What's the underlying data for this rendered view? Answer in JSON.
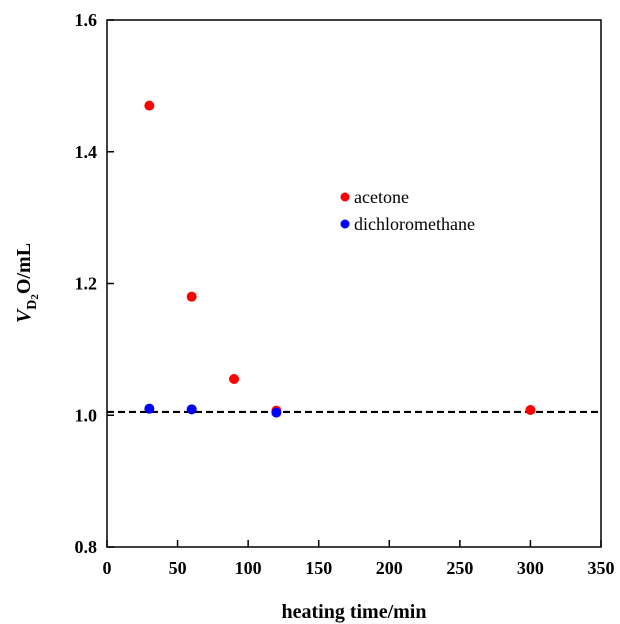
{
  "chart_data": {
    "type": "scatter",
    "xlabel": "heating time/min",
    "ylabel": {
      "main": "V",
      "sub_d": "D",
      "sub_2": "2",
      "rest": "O/mL"
    },
    "xlim": [
      0,
      350
    ],
    "ylim": [
      0.8,
      1.6
    ],
    "x_ticks": [
      0,
      50,
      100,
      150,
      200,
      250,
      300,
      350
    ],
    "y_ticks": [
      0.8,
      1.0,
      1.2,
      1.4,
      1.6
    ],
    "x_tick_labels": [
      "0",
      "50",
      "100",
      "150",
      "200",
      "250",
      "300",
      "350"
    ],
    "y_tick_labels": [
      "0.8",
      "1.0",
      "1.2",
      "1.4",
      "1.6"
    ],
    "reference_line": {
      "y": 1.005,
      "style": "dashed"
    },
    "legend_position": "inside-top-center",
    "grid": false,
    "series": [
      {
        "name": "acetone",
        "color": "#ff0000",
        "points": [
          [
            30,
            1.47
          ],
          [
            60,
            1.18
          ],
          [
            90,
            1.055
          ],
          [
            120,
            1.007
          ],
          [
            300,
            1.008
          ]
        ]
      },
      {
        "name": "dichloromethane",
        "color": "#0000ff",
        "points": [
          [
            30,
            1.01
          ],
          [
            60,
            1.009
          ],
          [
            120,
            1.004
          ]
        ]
      }
    ]
  }
}
